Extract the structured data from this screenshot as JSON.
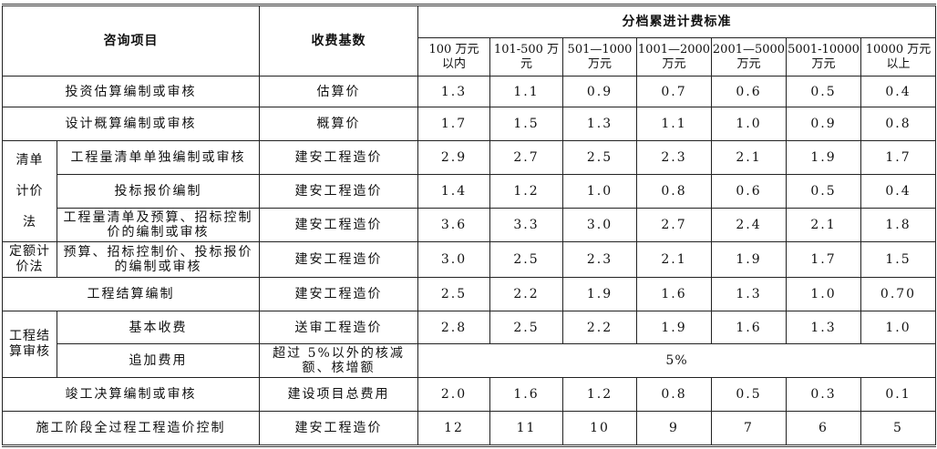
{
  "header": {
    "item": "咨询项目",
    "base": "收费基数",
    "tiered": "分档累进计费标准",
    "tiers": [
      "100 万元\n以内",
      "101-500 万\n元",
      "501—1000\n万元",
      "1001—2000\n万元",
      "2001—5000\n万元",
      "5001-10000\n万元",
      "10000 万元\n以上"
    ]
  },
  "groups": {
    "qingdan": "清单\n\n计价\n\n法",
    "dinge": "定额计\n价法",
    "jiesuan": "工程结\n算审核"
  },
  "rows": [
    {
      "item": "投资估算编制或审核",
      "base": "估算价",
      "values": [
        "1.3",
        "1.1",
        "0.9",
        "0.7",
        "0.6",
        "0.5",
        "0.4"
      ]
    },
    {
      "item": "设计概算编制或审核",
      "base": "概算价",
      "values": [
        "1.7",
        "1.5",
        "1.3",
        "1.1",
        "1.0",
        "0.9",
        "0.8"
      ]
    },
    {
      "item": "工程量清单单独编制或审核",
      "base": "建安工程造价",
      "values": [
        "2.9",
        "2.7",
        "2.5",
        "2.3",
        "2.1",
        "1.9",
        "1.7"
      ]
    },
    {
      "item": "投标报价编制",
      "base": "建安工程造价",
      "values": [
        "1.4",
        "1.2",
        "1.0",
        "0.8",
        "0.6",
        "0.5",
        "0.4"
      ]
    },
    {
      "item": "工程量清单及预算、招标控制价的编制或审核",
      "base": "建安工程造价",
      "values": [
        "3.6",
        "3.3",
        "3.0",
        "2.7",
        "2.4",
        "2.1",
        "1.8"
      ]
    },
    {
      "item": "预算、招标控制价、投标报价的编制或审核",
      "base": "建安工程造价",
      "values": [
        "3.0",
        "2.5",
        "2.3",
        "2.1",
        "1.9",
        "1.7",
        "1.5"
      ]
    },
    {
      "item": "工程结算编制",
      "base": "建安工程造价",
      "values": [
        "2.5",
        "2.2",
        "1.9",
        "1.6",
        "1.3",
        "1.0",
        "0.70"
      ]
    },
    {
      "item": "基本收费",
      "base": "送审工程造价",
      "values": [
        "2.8",
        "2.5",
        "2.2",
        "1.9",
        "1.6",
        "1.3",
        "1.0"
      ]
    },
    {
      "item": "追加费用",
      "base": "超过 5%以外的核减额、核增额",
      "merged": "5%"
    },
    {
      "item": "竣工决算编制或审核",
      "base": "建设项目总费用",
      "values": [
        "2.0",
        "1.6",
        "1.2",
        "0.8",
        "0.5",
        "0.3",
        "0.1"
      ]
    },
    {
      "item": "施工阶段全过程工程造价控制",
      "base": "建安工程造价",
      "values": [
        "12",
        "11",
        "10",
        "9",
        "7",
        "6",
        "5"
      ]
    }
  ]
}
